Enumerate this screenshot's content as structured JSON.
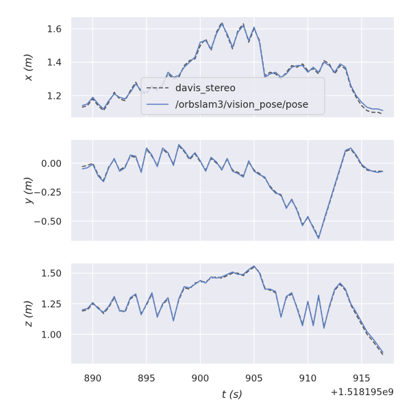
{
  "chart_data": {
    "type": "line",
    "xlabel": "t (s)",
    "x_offset_label": "+1.518195e9",
    "xlim": [
      888,
      918
    ],
    "xticks": [
      890,
      895,
      900,
      905,
      910,
      915
    ],
    "series_style": {
      "davis_stereo": {
        "color": "#555555",
        "dash": "6,3"
      },
      "/orbslam3/vision_pose/pose": {
        "color": "#5b7fbf",
        "dash": ""
      }
    },
    "legend": {
      "location": "center",
      "entries": [
        "davis_stereo",
        "/orbslam3/vision_pose/pose"
      ]
    },
    "subplots": [
      {
        "ylabel": "x (m)",
        "ylim": [
          1.07,
          1.67
        ],
        "yticks": [
          1.2,
          1.4,
          1.6
        ],
        "ytick_labels": [
          "1.2",
          "1.4",
          "1.6"
        ],
        "series": [
          {
            "name": "davis_stereo",
            "x": [
              889.0,
              889.5,
              890.0,
              890.5,
              891.0,
              891.5,
              892.0,
              892.5,
              893.0,
              893.5,
              894.0,
              894.5,
              895.0,
              895.5,
              896.0,
              896.5,
              897.0,
              897.5,
              898.0,
              898.5,
              899.0,
              899.5,
              900.0,
              900.5,
              901.0,
              901.5,
              902.0,
              902.5,
              903.0,
              903.5,
              904.0,
              904.5,
              905.0,
              905.5,
              906.0,
              906.5,
              907.0,
              907.5,
              908.0,
              908.5,
              909.0,
              909.5,
              910.0,
              910.5,
              911.0,
              911.5,
              912.0,
              912.5,
              913.0,
              913.5,
              914.0,
              914.5,
              915.0,
              915.5,
              916.0,
              916.5,
              917.0
            ],
            "y": [
              1.13,
              1.14,
              1.18,
              1.14,
              1.11,
              1.16,
              1.22,
              1.18,
              1.17,
              1.23,
              1.28,
              1.22,
              1.21,
              1.26,
              1.23,
              1.27,
              1.33,
              1.3,
              1.31,
              1.38,
              1.41,
              1.42,
              1.5,
              1.54,
              1.47,
              1.58,
              1.64,
              1.56,
              1.48,
              1.59,
              1.63,
              1.52,
              1.6,
              1.53,
              1.32,
              1.34,
              1.33,
              1.3,
              1.34,
              1.38,
              1.37,
              1.39,
              1.35,
              1.36,
              1.33,
              1.41,
              1.39,
              1.33,
              1.38,
              1.36,
              1.25,
              1.19,
              1.14,
              1.11,
              1.1,
              1.1,
              1.09
            ]
          },
          {
            "name": "/orbslam3/vision_pose/pose",
            "x": [
              889.0,
              889.5,
              890.0,
              890.5,
              891.0,
              891.5,
              892.0,
              892.5,
              893.0,
              893.5,
              894.0,
              894.5,
              895.0,
              895.5,
              896.0,
              896.5,
              897.0,
              897.5,
              898.0,
              898.5,
              899.0,
              899.5,
              900.0,
              900.5,
              901.0,
              901.5,
              902.0,
              902.5,
              903.0,
              903.5,
              904.0,
              904.5,
              905.0,
              905.5,
              906.0,
              906.5,
              907.0,
              907.5,
              908.0,
              908.5,
              909.0,
              909.5,
              910.0,
              910.5,
              911.0,
              911.5,
              912.0,
              912.5,
              913.0,
              913.5,
              914.0,
              914.5,
              915.0,
              915.5,
              916.0,
              916.5,
              917.0
            ],
            "y": [
              1.14,
              1.15,
              1.19,
              1.15,
              1.12,
              1.17,
              1.21,
              1.19,
              1.18,
              1.22,
              1.27,
              1.23,
              1.22,
              1.25,
              1.24,
              1.26,
              1.34,
              1.31,
              1.32,
              1.37,
              1.4,
              1.43,
              1.52,
              1.53,
              1.48,
              1.57,
              1.63,
              1.57,
              1.49,
              1.58,
              1.62,
              1.53,
              1.61,
              1.52,
              1.31,
              1.33,
              1.34,
              1.31,
              1.33,
              1.37,
              1.38,
              1.38,
              1.34,
              1.37,
              1.34,
              1.4,
              1.38,
              1.34,
              1.39,
              1.37,
              1.26,
              1.2,
              1.16,
              1.13,
              1.12,
              1.12,
              1.11
            ]
          }
        ]
      },
      {
        "ylabel": "y (m)",
        "ylim": [
          -0.67,
          0.2
        ],
        "yticks": [
          -0.5,
          -0.25,
          0.0
        ],
        "ytick_labels": [
          "−0.50",
          "−0.25",
          "0.00"
        ],
        "series": [
          {
            "name": "davis_stereo",
            "x": [
              889.0,
              889.5,
              890.0,
              890.5,
              891.0,
              891.5,
              892.0,
              892.5,
              893.0,
              893.5,
              894.0,
              894.5,
              895.0,
              895.5,
              896.0,
              896.5,
              897.0,
              897.5,
              898.0,
              898.5,
              899.0,
              899.5,
              900.0,
              900.5,
              901.0,
              901.5,
              902.0,
              902.5,
              903.0,
              903.5,
              904.0,
              904.5,
              905.0,
              905.5,
              906.0,
              906.5,
              907.0,
              907.5,
              908.0,
              908.5,
              909.0,
              909.5,
              910.0,
              910.5,
              911.0,
              911.5,
              912.0,
              912.5,
              913.0,
              913.5,
              914.0,
              914.5,
              915.0,
              915.5,
              916.0,
              916.5,
              917.0
            ],
            "y": [
              -0.03,
              -0.02,
              0.0,
              -0.1,
              -0.15,
              -0.03,
              0.03,
              -0.06,
              -0.03,
              0.06,
              0.05,
              -0.07,
              0.12,
              0.06,
              -0.02,
              0.12,
              0.08,
              -0.01,
              0.15,
              0.1,
              0.03,
              0.08,
              0.01,
              -0.06,
              0.04,
              0.0,
              -0.05,
              0.03,
              -0.06,
              -0.08,
              -0.11,
              0.01,
              -0.06,
              -0.09,
              -0.13,
              -0.2,
              -0.25,
              -0.28,
              -0.38,
              -0.32,
              -0.4,
              -0.53,
              -0.47,
              -0.55,
              -0.64,
              -0.5,
              -0.35,
              -0.2,
              -0.05,
              0.1,
              0.12,
              0.06,
              -0.02,
              -0.06,
              -0.07,
              -0.07,
              -0.07
            ]
          },
          {
            "name": "/orbslam3/vision_pose/pose",
            "x": [
              889.0,
              889.5,
              890.0,
              890.5,
              891.0,
              891.5,
              892.0,
              892.5,
              893.0,
              893.5,
              894.0,
              894.5,
              895.0,
              895.5,
              896.0,
              896.5,
              897.0,
              897.5,
              898.0,
              898.5,
              899.0,
              899.5,
              900.0,
              900.5,
              901.0,
              901.5,
              902.0,
              902.5,
              903.0,
              903.5,
              904.0,
              904.5,
              905.0,
              905.5,
              906.0,
              906.5,
              907.0,
              907.5,
              908.0,
              908.5,
              909.0,
              909.5,
              910.0,
              910.5,
              911.0,
              911.5,
              912.0,
              912.5,
              913.0,
              913.5,
              914.0,
              914.5,
              915.0,
              915.5,
              916.0,
              916.5,
              917.0
            ],
            "y": [
              -0.05,
              -0.04,
              -0.01,
              -0.11,
              -0.16,
              -0.04,
              0.04,
              -0.07,
              -0.04,
              0.07,
              0.06,
              -0.08,
              0.13,
              0.07,
              -0.03,
              0.13,
              0.09,
              -0.02,
              0.16,
              0.11,
              0.04,
              0.09,
              0.02,
              -0.07,
              0.05,
              0.01,
              -0.06,
              0.04,
              -0.07,
              -0.09,
              -0.12,
              0.02,
              -0.07,
              -0.1,
              -0.12,
              -0.21,
              -0.26,
              -0.27,
              -0.39,
              -0.31,
              -0.41,
              -0.54,
              -0.46,
              -0.56,
              -0.65,
              -0.49,
              -0.34,
              -0.19,
              -0.04,
              0.11,
              0.13,
              0.07,
              -0.01,
              -0.05,
              -0.07,
              -0.08,
              -0.07
            ]
          }
        ]
      },
      {
        "ylabel": "z (m)",
        "ylim": [
          0.76,
          1.58
        ],
        "yticks": [
          1.0,
          1.25,
          1.5
        ],
        "ytick_labels": [
          "1.00",
          "1.25",
          "1.50"
        ],
        "series": [
          {
            "name": "davis_stereo",
            "x": [
              889.0,
              889.5,
              890.0,
              890.5,
              891.0,
              891.5,
              892.0,
              892.5,
              893.0,
              893.5,
              894.0,
              894.5,
              895.0,
              895.5,
              896.0,
              896.5,
              897.0,
              897.5,
              898.0,
              898.5,
              899.0,
              899.5,
              900.0,
              900.5,
              901.0,
              901.5,
              902.0,
              902.5,
              903.0,
              903.5,
              904.0,
              904.5,
              905.0,
              905.5,
              906.0,
              906.5,
              907.0,
              907.5,
              908.0,
              908.5,
              909.0,
              909.5,
              910.0,
              910.5,
              911.0,
              911.5,
              912.0,
              912.5,
              913.0,
              913.5,
              914.0,
              914.5,
              915.0,
              915.5,
              916.0,
              916.5,
              917.0
            ],
            "y": [
              1.19,
              1.2,
              1.25,
              1.22,
              1.17,
              1.22,
              1.3,
              1.2,
              1.18,
              1.29,
              1.32,
              1.17,
              1.24,
              1.33,
              1.15,
              1.24,
              1.29,
              1.12,
              1.28,
              1.38,
              1.37,
              1.42,
              1.43,
              1.43,
              1.46,
              1.47,
              1.46,
              1.48,
              1.5,
              1.5,
              1.48,
              1.52,
              1.55,
              1.51,
              1.38,
              1.36,
              1.34,
              1.15,
              1.3,
              1.33,
              1.22,
              1.08,
              1.26,
              1.08,
              1.31,
              1.06,
              1.22,
              1.36,
              1.41,
              1.36,
              1.24,
              1.16,
              1.08,
              1.0,
              0.95,
              0.89,
              0.83
            ]
          },
          {
            "name": "/orbslam3/vision_pose/pose",
            "x": [
              889.0,
              889.5,
              890.0,
              890.5,
              891.0,
              891.5,
              892.0,
              892.5,
              893.0,
              893.5,
              894.0,
              894.5,
              895.0,
              895.5,
              896.0,
              896.5,
              897.0,
              897.5,
              898.0,
              898.5,
              899.0,
              899.5,
              900.0,
              900.5,
              901.0,
              901.5,
              902.0,
              902.5,
              903.0,
              903.5,
              904.0,
              904.5,
              905.0,
              905.5,
              906.0,
              906.5,
              907.0,
              907.5,
              908.0,
              908.5,
              909.0,
              909.5,
              910.0,
              910.5,
              911.0,
              911.5,
              912.0,
              912.5,
              913.0,
              913.5,
              914.0,
              914.5,
              915.0,
              915.5,
              916.0,
              916.5,
              917.0
            ],
            "y": [
              1.2,
              1.21,
              1.26,
              1.21,
              1.18,
              1.23,
              1.31,
              1.19,
              1.19,
              1.3,
              1.33,
              1.16,
              1.25,
              1.34,
              1.14,
              1.25,
              1.3,
              1.11,
              1.29,
              1.39,
              1.38,
              1.41,
              1.44,
              1.42,
              1.47,
              1.46,
              1.47,
              1.49,
              1.51,
              1.49,
              1.49,
              1.53,
              1.56,
              1.5,
              1.37,
              1.37,
              1.35,
              1.14,
              1.31,
              1.34,
              1.21,
              1.07,
              1.27,
              1.07,
              1.32,
              1.05,
              1.23,
              1.37,
              1.42,
              1.37,
              1.25,
              1.18,
              1.1,
              1.02,
              0.97,
              0.91,
              0.85
            ]
          }
        ]
      }
    ]
  }
}
